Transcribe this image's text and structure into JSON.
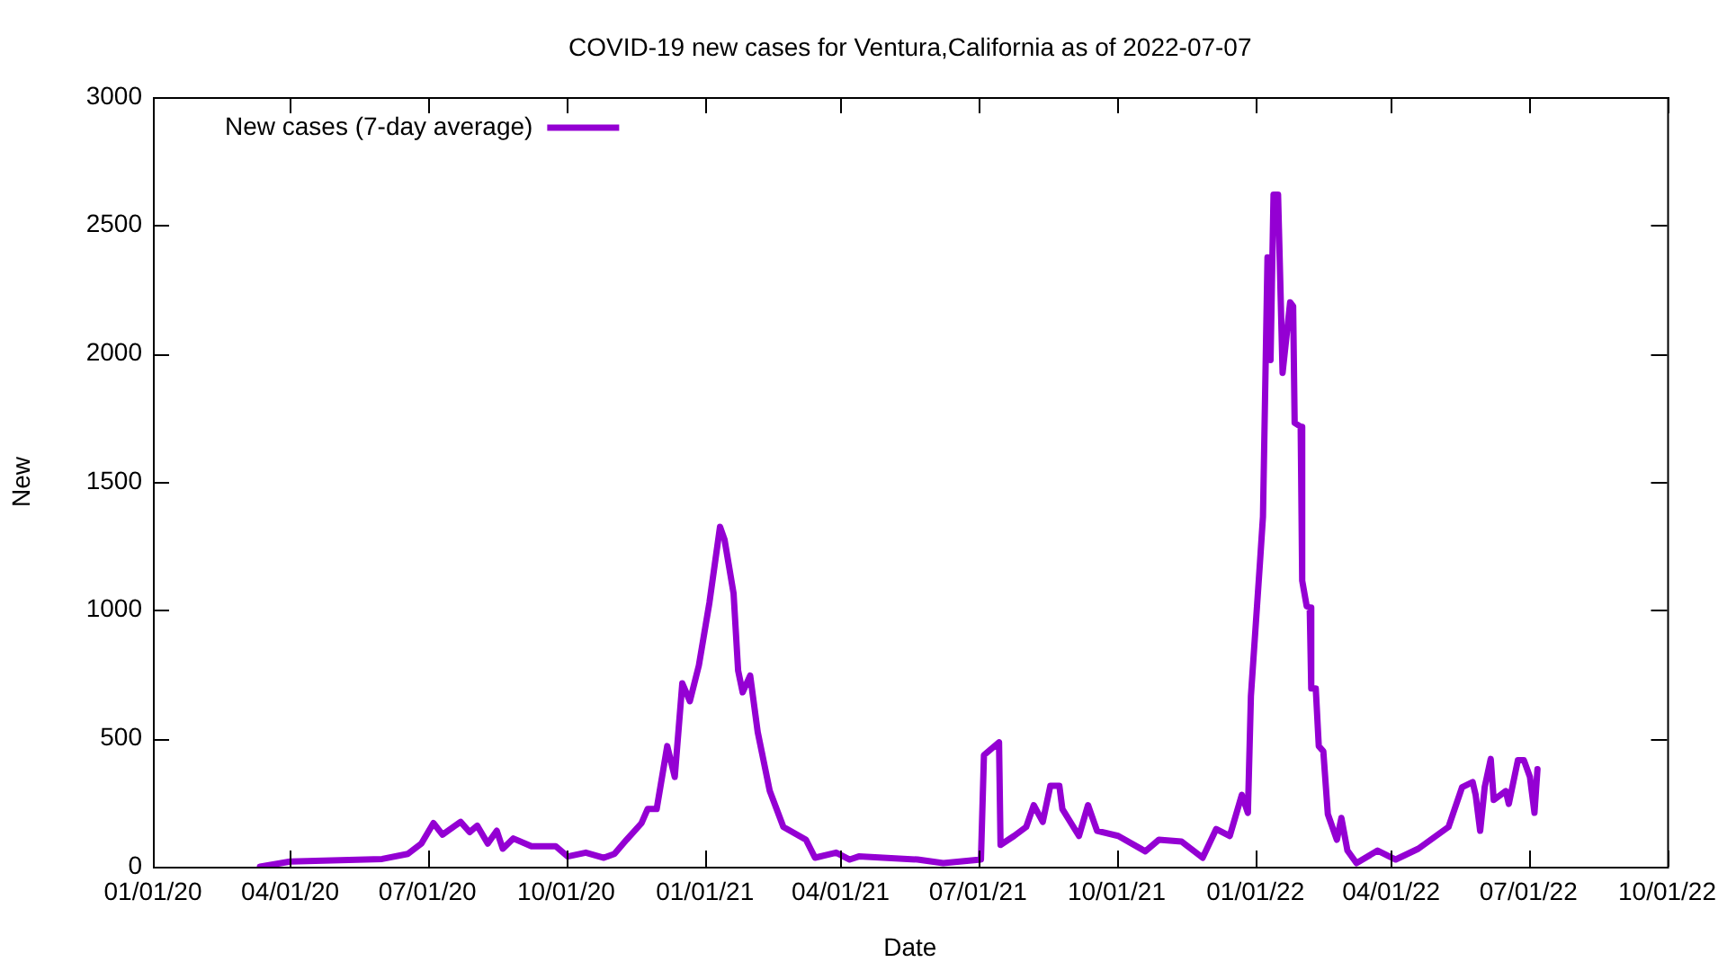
{
  "chart_data": {
    "type": "line",
    "title": "COVID-19 new cases for Ventura,California as of 2022-07-07",
    "xlabel": "Date",
    "ylabel": "New",
    "legend": "top left",
    "marker": "none",
    "line_style": "solid",
    "grid": false,
    "xlim": [
      "2020-01-01",
      "2022-10-01"
    ],
    "xticks": [
      {
        "value": "2020-01-01",
        "label": "01/01/20"
      },
      {
        "value": "2020-04-01",
        "label": "04/01/20"
      },
      {
        "value": "2020-07-01",
        "label": "07/01/20"
      },
      {
        "value": "2020-10-01",
        "label": "10/01/20"
      },
      {
        "value": "2021-01-01",
        "label": "01/01/21"
      },
      {
        "value": "2021-04-01",
        "label": "04/01/21"
      },
      {
        "value": "2021-07-01",
        "label": "07/01/21"
      },
      {
        "value": "2021-10-01",
        "label": "10/01/21"
      },
      {
        "value": "2022-01-01",
        "label": "01/01/22"
      },
      {
        "value": "2022-04-01",
        "label": "04/01/22"
      },
      {
        "value": "2022-07-01",
        "label": "07/01/22"
      },
      {
        "value": "2022-10-01",
        "label": "10/01/22"
      }
    ],
    "ylim": [
      0,
      3000
    ],
    "yticks": [
      0,
      500,
      1000,
      1500,
      2000,
      2500,
      3000
    ],
    "x": [
      "2020-03-12",
      "2020-04-01",
      "2020-06-01",
      "2020-06-18",
      "2020-06-27",
      "2020-07-05",
      "2020-07-11",
      "2020-07-23",
      "2020-07-29",
      "2020-08-03",
      "2020-08-10",
      "2020-08-16",
      "2020-08-20",
      "2020-08-27",
      "2020-09-08",
      "2020-09-24",
      "2020-10-02",
      "2020-10-14",
      "2020-10-26",
      "2020-11-02",
      "2020-11-10",
      "2020-11-20",
      "2020-11-24",
      "2020-11-30",
      "2020-12-04",
      "2020-12-07",
      "2020-12-12",
      "2020-12-17",
      "2020-12-22",
      "2020-12-28",
      "2021-01-04",
      "2021-01-11",
      "2021-01-14",
      "2021-01-20",
      "2021-01-23",
      "2021-01-26",
      "2021-01-31",
      "2021-02-05",
      "2021-02-13",
      "2021-02-22",
      "2021-03-09",
      "2021-03-15",
      "2021-03-29",
      "2021-04-07",
      "2021-04-13",
      "2021-05-22",
      "2021-06-08",
      "2021-07-03",
      "2021-07-05",
      "2021-07-15",
      "2021-07-16",
      "2021-07-25",
      "2021-08-02",
      "2021-08-07",
      "2021-08-13",
      "2021-08-18",
      "2021-08-24",
      "2021-08-26",
      "2021-09-06",
      "2021-09-12",
      "2021-09-18",
      "2021-10-02",
      "2021-10-20",
      "2021-10-29",
      "2021-11-13",
      "2021-11-27",
      "2021-12-06",
      "2021-12-15",
      "2021-12-23",
      "2021-12-27",
      "2021-12-29",
      "2022-01-04",
      "2022-01-06",
      "2022-01-09",
      "2022-01-11",
      "2022-01-13",
      "2022-01-16",
      "2022-01-19",
      "2022-01-24",
      "2022-01-26",
      "2022-01-27",
      "2022-01-31",
      "2022-02-01",
      "2022-02-04",
      "2022-02-06",
      "2022-02-07",
      "2022-02-10",
      "2022-02-12",
      "2022-02-15",
      "2022-02-18",
      "2022-02-24",
      "2022-02-27",
      "2022-03-03",
      "2022-03-09",
      "2022-03-23",
      "2022-04-04",
      "2022-04-19",
      "2022-05-09",
      "2022-05-18",
      "2022-05-25",
      "2022-05-27",
      "2022-05-30",
      "2022-06-02",
      "2022-06-06",
      "2022-06-08",
      "2022-06-16",
      "2022-06-18",
      "2022-06-24",
      "2022-06-28",
      "2022-07-02",
      "2022-07-05",
      "2022-07-07"
    ],
    "series": [
      {
        "name": "New cases (7-day average)",
        "color": "#9400d3",
        "values": [
          0,
          20,
          30,
          50,
          90,
          170,
          125,
          175,
          135,
          160,
          90,
          140,
          70,
          110,
          80,
          80,
          40,
          55,
          35,
          50,
          105,
          170,
          225,
          225,
          365,
          470,
          350,
          715,
          645,
          785,
          1030,
          1325,
          1275,
          1065,
          765,
          680,
          745,
          525,
          295,
          155,
          105,
          35,
          55,
          28,
          40,
          28,
          14,
          28,
          435,
          485,
          85,
          120,
          155,
          240,
          175,
          315,
          315,
          225,
          120,
          240,
          140,
          120,
          60,
          105,
          98,
          35,
          147,
          120,
          280,
          210,
          665,
          1185,
          1365,
          2375,
          1975,
          2620,
          2620,
          1925,
          2200,
          2185,
          1730,
          1715,
          1115,
          1015,
          1010,
          695,
          695,
          470,
          450,
          205,
          105,
          190,
          63,
          14,
          63,
          28,
          70,
          155,
          310,
          330,
          280,
          140,
          310,
          420,
          260,
          295,
          245,
          415,
          415,
          350,
          210,
          380
        ]
      }
    ]
  }
}
